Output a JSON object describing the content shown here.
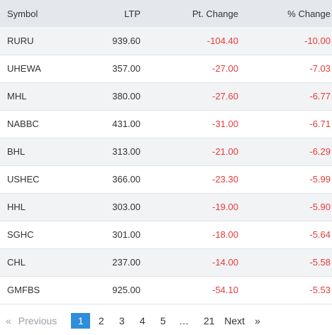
{
  "table": {
    "headers": [
      "Symbol",
      "LTP",
      "Pt. Change",
      "% Change"
    ],
    "rows": [
      {
        "symbol": "RURU",
        "ltp": "939.60",
        "pt_change": "-104.40",
        "pct_change": "-10.00"
      },
      {
        "symbol": "UHEWA",
        "ltp": "357.00",
        "pt_change": "-27.00",
        "pct_change": "-7.03"
      },
      {
        "symbol": "MHL",
        "ltp": "380.00",
        "pt_change": "-27.60",
        "pct_change": "-6.77"
      },
      {
        "symbol": "NABBC",
        "ltp": "431.00",
        "pt_change": "-31.00",
        "pct_change": "-6.71"
      },
      {
        "symbol": "BHL",
        "ltp": "313.00",
        "pt_change": "-21.00",
        "pct_change": "-6.29"
      },
      {
        "symbol": "USHEC",
        "ltp": "366.00",
        "pt_change": "-23.30",
        "pct_change": "-5.99"
      },
      {
        "symbol": "HHL",
        "ltp": "303.00",
        "pt_change": "-19.00",
        "pct_change": "-5.90"
      },
      {
        "symbol": "SGHC",
        "ltp": "301.00",
        "pt_change": "-18.00",
        "pct_change": "-5.64"
      },
      {
        "symbol": "CHL",
        "ltp": "237.00",
        "pt_change": "-14.00",
        "pct_change": "-5.58"
      },
      {
        "symbol": "GMFBS",
        "ltp": "925.00",
        "pt_change": "-54.10",
        "pct_change": "-5.53"
      }
    ]
  },
  "pagination": {
    "prev_arrow": "«",
    "prev_label": "Previous",
    "pages": [
      "1",
      "2",
      "3",
      "4",
      "5"
    ],
    "ellipsis": "…",
    "last_page": "21",
    "next_label": "Next",
    "next_arrow": "»",
    "active_page": "1"
  },
  "colors": {
    "negative": "#e63b3b",
    "header_bg": "#e4e8ec",
    "active_page_bg": "#2f8ddb"
  }
}
